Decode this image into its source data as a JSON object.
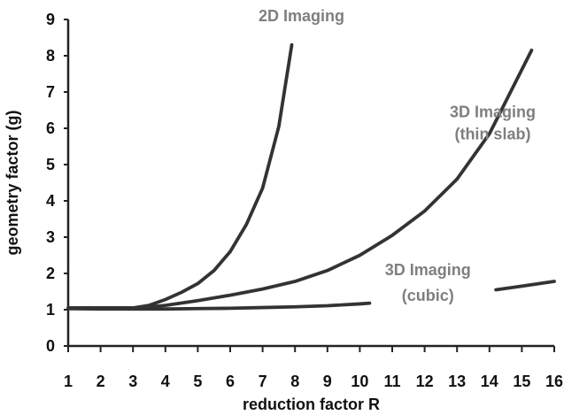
{
  "chart_data": {
    "type": "line",
    "xlabel": "reduction factor R",
    "ylabel": "geometry factor (g)",
    "xlim": [
      1,
      16
    ],
    "ylim": [
      0,
      9
    ],
    "x_ticks": [
      1,
      2,
      3,
      4,
      5,
      6,
      7,
      8,
      9,
      10,
      11,
      12,
      13,
      14,
      15,
      16
    ],
    "y_ticks": [
      0,
      1,
      2,
      3,
      4,
      5,
      6,
      7,
      8,
      9
    ],
    "grid": false,
    "legend": "none",
    "colors": {
      "series": "#333333",
      "annotation": "#7f7f7f",
      "axis": "#222222"
    },
    "series": [
      {
        "x": [
          1,
          2,
          3,
          3.5,
          4,
          4.5,
          5,
          5.5,
          6,
          6.5,
          7,
          7.5,
          7.9
        ],
        "values": [
          1.05,
          1.05,
          1.05,
          1.12,
          1.28,
          1.48,
          1.72,
          2.08,
          2.6,
          3.35,
          4.35,
          6.05,
          8.3
        ]
      },
      {
        "x": [
          1,
          2,
          3,
          4,
          5,
          6,
          7,
          8,
          9,
          10,
          11,
          12,
          13,
          14,
          15.3
        ],
        "values": [
          1.03,
          1.03,
          1.03,
          1.12,
          1.25,
          1.4,
          1.57,
          1.78,
          2.08,
          2.5,
          3.05,
          3.72,
          4.6,
          5.85,
          8.15
        ]
      },
      {
        "x": [
          1,
          2,
          3,
          4,
          5,
          6,
          7,
          8,
          9,
          10,
          10.3
        ],
        "values": [
          1.03,
          1.02,
          1.02,
          1.02,
          1.03,
          1.04,
          1.06,
          1.08,
          1.11,
          1.16,
          1.18
        ],
        "segment": "lower"
      },
      {
        "x": [
          14.2,
          15,
          16
        ],
        "values": [
          1.55,
          1.65,
          1.78
        ],
        "segment": "upper"
      }
    ],
    "annotations": [
      {
        "text": "2D Imaging",
        "x": 8.2,
        "y": 8.95
      },
      {
        "text": "3D Imaging",
        "x": 14.1,
        "y": 6.3
      },
      {
        "text": "(thin slab)",
        "x": 14.1,
        "y": 5.7
      },
      {
        "text": "3D Imaging",
        "x": 12.1,
        "y": 1.95
      },
      {
        "text": "(cubic)",
        "x": 12.1,
        "y": 1.25
      }
    ]
  }
}
